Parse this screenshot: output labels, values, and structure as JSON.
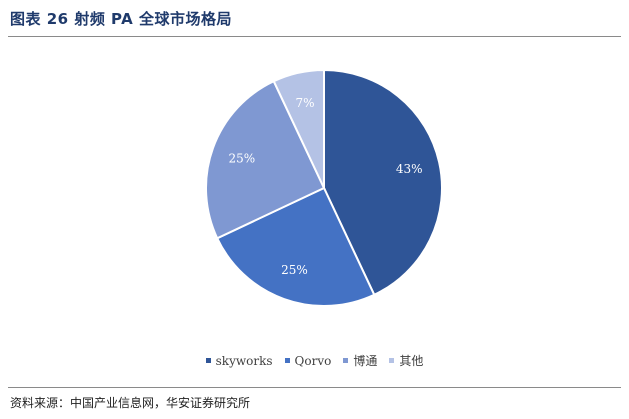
{
  "title": "图表 26 射频 PA 全球市场格局",
  "source": "资料来源：中国产业信息网，华安证券研究所",
  "chart_data": {
    "type": "pie",
    "start_angle_deg": 0,
    "direction": "clockwise",
    "legend_position": "bottom",
    "slices": [
      {
        "name": "skyworks",
        "value": 43,
        "label": "43%",
        "color": "#2F5597"
      },
      {
        "name": "Qorvo",
        "value": 25,
        "label": "25%",
        "color": "#4472C4"
      },
      {
        "name": "博通",
        "value": 25,
        "label": "25%",
        "color": "#7F98D2"
      },
      {
        "name": "其他",
        "value": 7,
        "label": "7%",
        "color": "#B4C2E5"
      }
    ]
  }
}
